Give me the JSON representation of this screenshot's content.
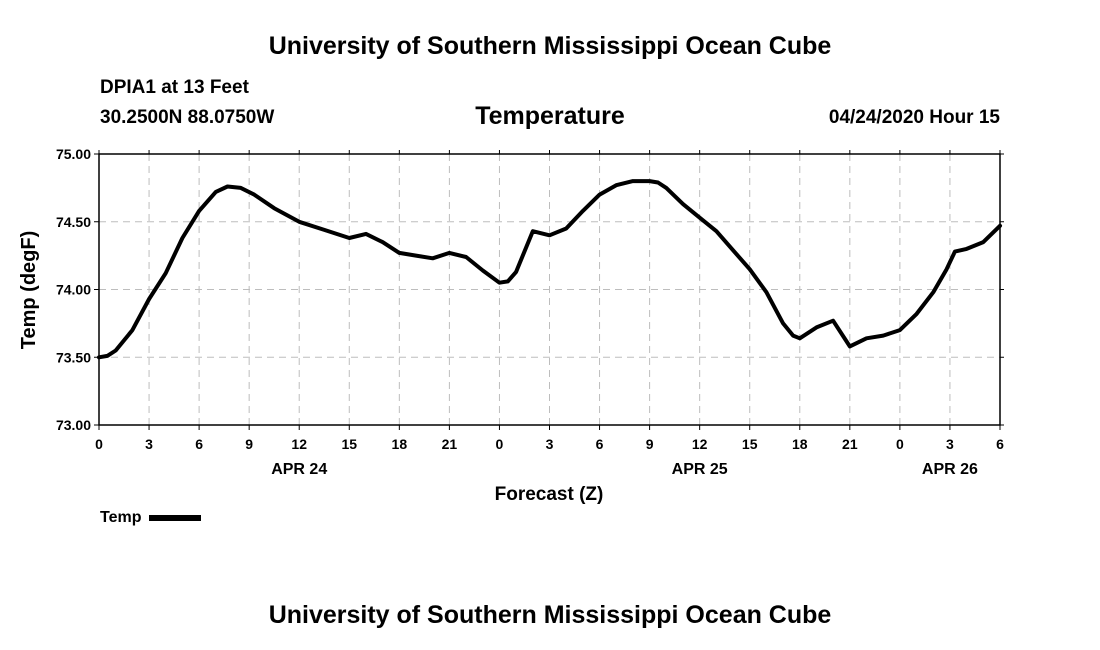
{
  "page": {
    "top_title": "University of Southern Mississippi Ocean Cube",
    "bottom_title": "University of Southern Mississippi Ocean Cube",
    "station": "DPIA1 at 13 Feet",
    "coords": "30.2500N 88.0750W",
    "plot_title": "Temperature",
    "forecast_time": "04/24/2020 Hour 15",
    "legend_label": "Temp"
  },
  "chart_data": {
    "type": "line",
    "title": "Temperature",
    "xlabel": "Forecast (Z)",
    "ylabel": "Temp (degF)",
    "ylim": [
      73.0,
      75.0
    ],
    "yticks": [
      "73.00",
      "73.50",
      "74.00",
      "74.50",
      "75.00"
    ],
    "xlim": [
      0,
      54
    ],
    "xticks": [
      {
        "x": 0,
        "label": "0"
      },
      {
        "x": 3,
        "label": "3"
      },
      {
        "x": 6,
        "label": "6"
      },
      {
        "x": 9,
        "label": "9"
      },
      {
        "x": 12,
        "label": "12"
      },
      {
        "x": 15,
        "label": "15"
      },
      {
        "x": 18,
        "label": "18"
      },
      {
        "x": 21,
        "label": "21"
      },
      {
        "x": 24,
        "label": "0"
      },
      {
        "x": 27,
        "label": "3"
      },
      {
        "x": 30,
        "label": "6"
      },
      {
        "x": 33,
        "label": "9"
      },
      {
        "x": 36,
        "label": "12"
      },
      {
        "x": 39,
        "label": "15"
      },
      {
        "x": 42,
        "label": "18"
      },
      {
        "x": 45,
        "label": "21"
      },
      {
        "x": 48,
        "label": "0"
      },
      {
        "x": 51,
        "label": "3"
      },
      {
        "x": 54,
        "label": "6"
      }
    ],
    "day_labels": [
      {
        "x": 12,
        "label": "APR 24"
      },
      {
        "x": 36,
        "label": "APR 25"
      },
      {
        "x": 51,
        "label": "APR 26"
      }
    ],
    "grid": true,
    "color": "#000000",
    "series": [
      {
        "name": "Temp",
        "points": [
          [
            0,
            73.5
          ],
          [
            0.5,
            73.51
          ],
          [
            1,
            73.55
          ],
          [
            2,
            73.7
          ],
          [
            3,
            73.93
          ],
          [
            4,
            74.12
          ],
          [
            5,
            74.38
          ],
          [
            6,
            74.58
          ],
          [
            7,
            74.72
          ],
          [
            7.7,
            74.76
          ],
          [
            8.5,
            74.75
          ],
          [
            9.3,
            74.7
          ],
          [
            10.5,
            74.6
          ],
          [
            12,
            74.5
          ],
          [
            13.5,
            74.44
          ],
          [
            15,
            74.38
          ],
          [
            16,
            74.41
          ],
          [
            17,
            74.35
          ],
          [
            18,
            74.27
          ],
          [
            19,
            74.25
          ],
          [
            20,
            74.23
          ],
          [
            21,
            74.27
          ],
          [
            22,
            74.24
          ],
          [
            23,
            74.14
          ],
          [
            24,
            74.05
          ],
          [
            24.5,
            74.06
          ],
          [
            25,
            74.13
          ],
          [
            26,
            74.43
          ],
          [
            27,
            74.4
          ],
          [
            28,
            74.45
          ],
          [
            29,
            74.58
          ],
          [
            30,
            74.7
          ],
          [
            31,
            74.77
          ],
          [
            32,
            74.8
          ],
          [
            33,
            74.8
          ],
          [
            33.5,
            74.79
          ],
          [
            34,
            74.75
          ],
          [
            35,
            74.63
          ],
          [
            36,
            74.53
          ],
          [
            37,
            74.43
          ],
          [
            38,
            74.29
          ],
          [
            39,
            74.15
          ],
          [
            40,
            73.98
          ],
          [
            41,
            73.75
          ],
          [
            41.6,
            73.66
          ],
          [
            42,
            73.64
          ],
          [
            43,
            73.72
          ],
          [
            44,
            73.77
          ],
          [
            45,
            73.58
          ],
          [
            46,
            73.64
          ],
          [
            47,
            73.66
          ],
          [
            48,
            73.7
          ],
          [
            49,
            73.82
          ],
          [
            50,
            73.98
          ],
          [
            50.8,
            74.15
          ],
          [
            51.3,
            74.28
          ],
          [
            52,
            74.3
          ],
          [
            53,
            74.35
          ],
          [
            54,
            74.47
          ]
        ]
      }
    ]
  }
}
